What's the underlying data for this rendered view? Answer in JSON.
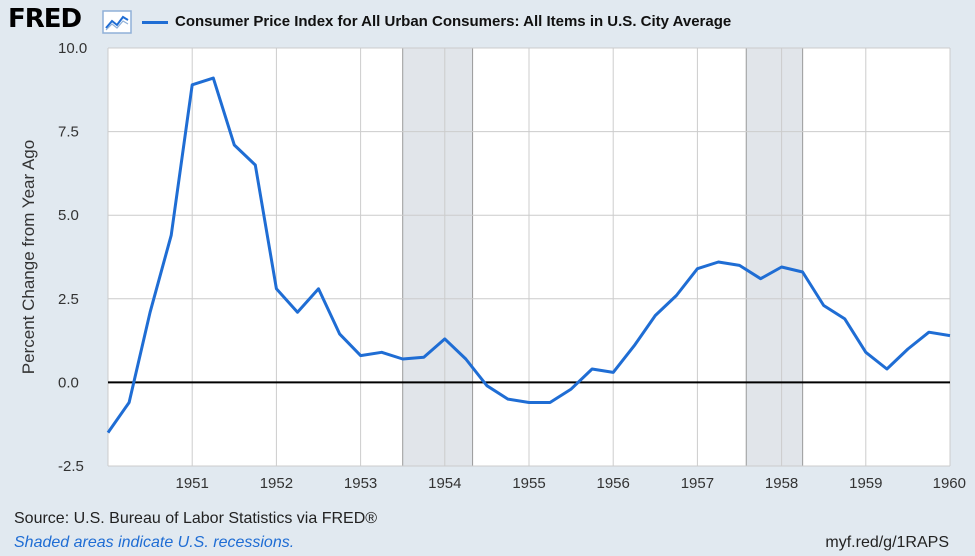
{
  "header": {
    "logo": "FRED",
    "logo_icon": "chart-line-icon"
  },
  "colors": {
    "series": "#1f6dd4",
    "recession": "#e1e5ea",
    "background": "#e1e9f0",
    "plot_bg": "#ffffff",
    "grid": "#cccccc",
    "zero_line": "#000000"
  },
  "footer": {
    "source": "Source: U.S. Bureau of Labor Statistics via FRED®",
    "recession_note": "Shaded areas indicate U.S. recessions.",
    "link": "myf.red/g/1RAPS"
  },
  "chart_data": {
    "type": "line",
    "title": "",
    "ylabel": "Percent Change from Year Ago",
    "xlabel": "",
    "xlim": [
      1950.0,
      1960.0
    ],
    "ylim": [
      -2.5,
      10.0
    ],
    "yticks": [
      "10.0",
      "7.5",
      "5.0",
      "2.5",
      "0.0",
      "-2.5"
    ],
    "ytick_values": [
      10.0,
      7.5,
      5.0,
      2.5,
      0.0,
      -2.5
    ],
    "xticks": [
      "1951",
      "1952",
      "1953",
      "1954",
      "1955",
      "1956",
      "1957",
      "1958",
      "1959",
      "1960"
    ],
    "xtick_values": [
      1951,
      1952,
      1953,
      1954,
      1955,
      1956,
      1957,
      1958,
      1959,
      1960
    ],
    "recessions": [
      [
        1953.5,
        1954.33
      ],
      [
        1957.58,
        1958.25
      ]
    ],
    "series": [
      {
        "name": "Consumer Price Index for All Urban Consumers: All Items in U.S. City Average",
        "x": [
          1950.0,
          1950.25,
          1950.5,
          1950.75,
          1951.0,
          1951.25,
          1951.5,
          1951.75,
          1952.0,
          1952.25,
          1952.5,
          1952.75,
          1953.0,
          1953.25,
          1953.5,
          1953.75,
          1954.0,
          1954.25,
          1954.5,
          1954.75,
          1955.0,
          1955.25,
          1955.5,
          1955.75,
          1956.0,
          1956.25,
          1956.5,
          1956.75,
          1957.0,
          1957.25,
          1957.5,
          1957.75,
          1958.0,
          1958.25,
          1958.5,
          1958.75,
          1959.0,
          1959.25,
          1959.5,
          1959.75,
          1960.0
        ],
        "values": [
          -1.5,
          -0.6,
          2.1,
          4.4,
          8.9,
          9.1,
          7.1,
          6.5,
          2.8,
          2.1,
          2.8,
          1.45,
          0.8,
          0.9,
          0.7,
          0.75,
          1.3,
          0.7,
          -0.1,
          -0.5,
          -0.6,
          -0.6,
          -0.2,
          0.4,
          0.3,
          1.1,
          2.0,
          2.6,
          3.4,
          3.6,
          3.5,
          3.1,
          3.45,
          3.3,
          2.3,
          1.9,
          0.9,
          0.4,
          1.0,
          1.5,
          1.4
        ]
      }
    ]
  }
}
